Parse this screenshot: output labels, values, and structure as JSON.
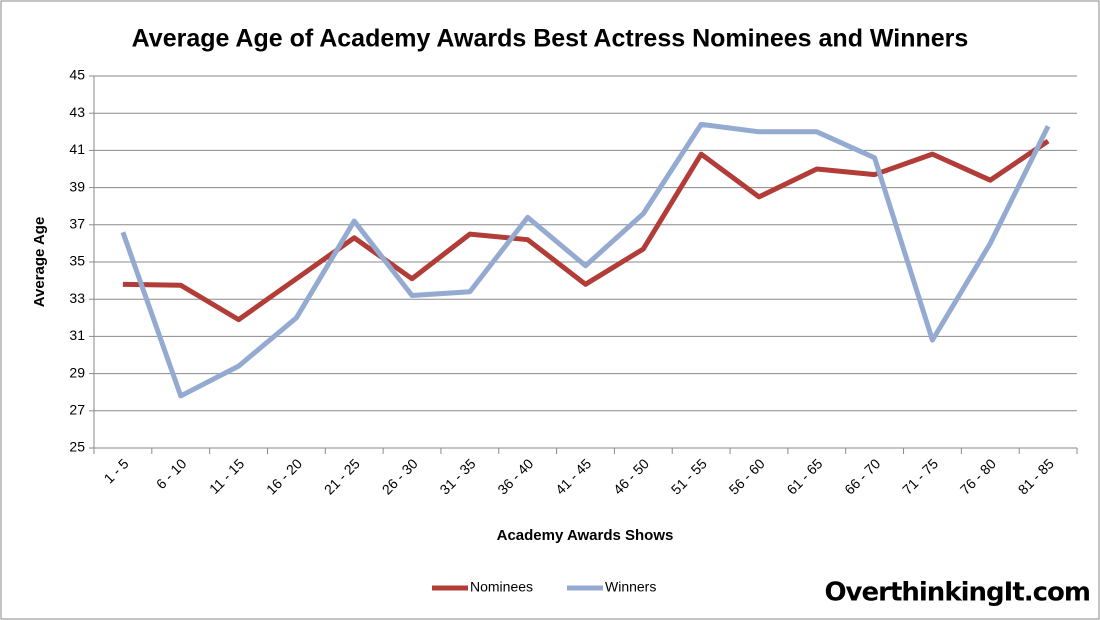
{
  "chart_data": {
    "type": "line",
    "title": "Average Age of Academy Awards Best Actress Nominees and Winners",
    "x_label": "Academy Awards Shows",
    "y_label": "Average Age",
    "watermark": "OverthinkingIt.com",
    "categories": [
      "1 - 5",
      "6 - 10",
      "11 - 15",
      "16 - 20",
      "21 - 25",
      "26 - 30",
      "31 - 35",
      "36 - 40",
      "41 - 45",
      "46 - 50",
      "51 - 55",
      "56 - 60",
      "61 - 65",
      "66 - 70",
      "71 - 75",
      "76 - 80",
      "81 - 85"
    ],
    "series": [
      {
        "name": "Nominees",
        "color": "#b23c37",
        "values": [
          33.8,
          33.75,
          31.9,
          34.1,
          36.3,
          34.1,
          36.5,
          36.2,
          33.8,
          35.7,
          40.8,
          38.5,
          40.0,
          39.7,
          40.8,
          39.4,
          41.5
        ]
      },
      {
        "name": "Winners",
        "color": "#94aad0",
        "values": [
          36.6,
          27.8,
          29.4,
          32.0,
          37.2,
          33.2,
          33.4,
          37.4,
          34.8,
          37.6,
          42.4,
          42.0,
          42.0,
          40.6,
          30.8,
          36.0,
          42.3
        ]
      }
    ],
    "ylim": [
      25,
      45
    ],
    "yticks": [
      25,
      27,
      29,
      31,
      33,
      35,
      37,
      39,
      41,
      43,
      45
    ],
    "grid": true,
    "legend": "bottom"
  }
}
